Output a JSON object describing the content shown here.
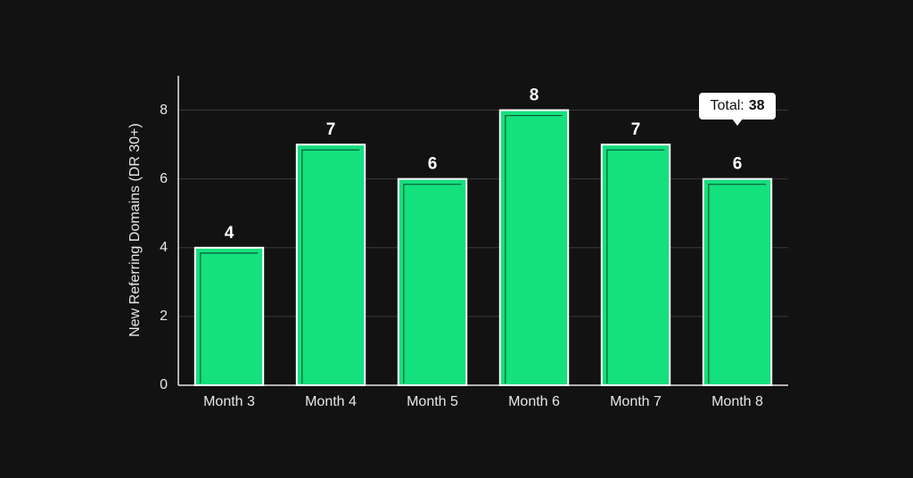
{
  "chart_data": {
    "type": "bar",
    "y_label": "New Referring Domains (DR 30+)",
    "categories": [
      "Month 3",
      "Month 4",
      "Month 5",
      "Month 6",
      "Month 7",
      "Month 8"
    ],
    "values": [
      4,
      7,
      6,
      8,
      7,
      6
    ],
    "color": "#14e07e",
    "ylim": [
      0,
      9
    ],
    "yticks": [
      0,
      2,
      4,
      6,
      8
    ],
    "grid": true,
    "tooltip": {
      "label": "Total:",
      "value": 38
    }
  }
}
